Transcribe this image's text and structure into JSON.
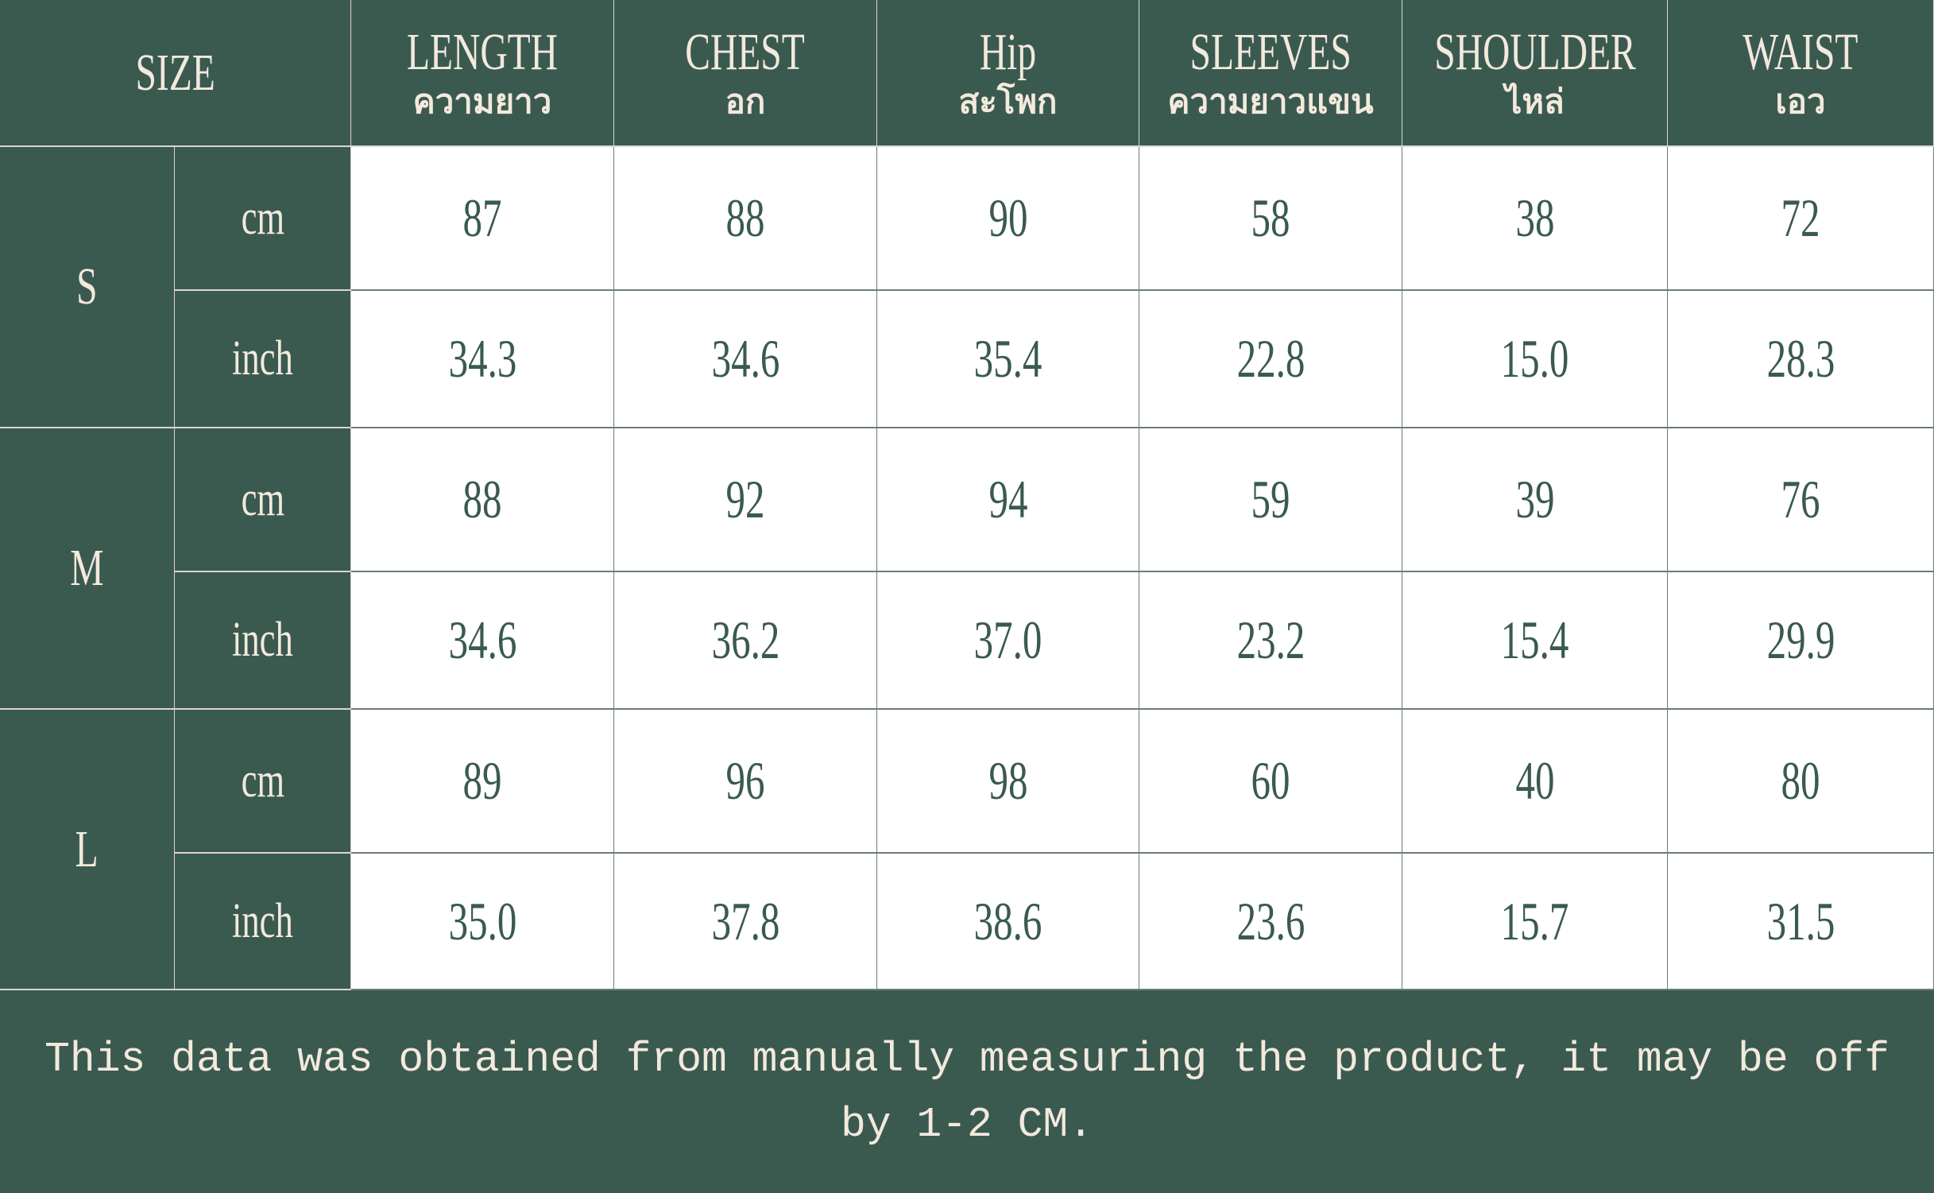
{
  "header": {
    "size_label": "SIZE",
    "columns": [
      {
        "en": "LENGTH",
        "th": "ความยาว"
      },
      {
        "en": "CHEST",
        "th": "อก"
      },
      {
        "en": "Hip",
        "th": "สะโพก"
      },
      {
        "en": "SLEEVES",
        "th": "ความยาวแขน"
      },
      {
        "en": "SHOULDER",
        "th": "ไหล่"
      },
      {
        "en": "WAIST",
        "th": "เอว"
      }
    ]
  },
  "sizes": [
    {
      "size": "S",
      "cm_label": "cm",
      "inch_label": "inch",
      "cm": [
        "87",
        "88",
        "90",
        "58",
        "38",
        "72"
      ],
      "inch": [
        "34.3",
        "34.6",
        "35.4",
        "22.8",
        "15.0",
        "28.3"
      ]
    },
    {
      "size": "M",
      "cm_label": "cm",
      "inch_label": "inch",
      "cm": [
        "88",
        "92",
        "94",
        "59",
        "39",
        "76"
      ],
      "inch": [
        "34.6",
        "36.2",
        "37.0",
        "23.2",
        "15.4",
        "29.9"
      ]
    },
    {
      "size": "L",
      "cm_label": "cm",
      "inch_label": "inch",
      "cm": [
        "89",
        "96",
        "98",
        "60",
        "40",
        "80"
      ],
      "inch": [
        "35.0",
        "37.8",
        "38.6",
        "23.6",
        "15.7",
        "31.5"
      ]
    }
  ],
  "footer": {
    "note": "This data was obtained from manually measuring the product, it may be off by 1-2 CM."
  },
  "colors": {
    "header_bg": "#3a5a50",
    "header_text": "#f3e9dc",
    "value_text": "#3a5a50"
  }
}
